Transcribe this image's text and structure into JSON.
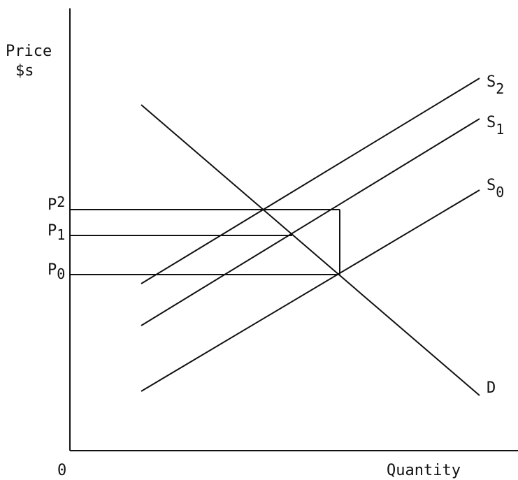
{
  "axes": {
    "y_label": "Price",
    "y_unit": "$s",
    "origin": "0",
    "x_label": "Quantity"
  },
  "curves": [
    {
      "name": "S",
      "sub": "2"
    },
    {
      "name": "S",
      "sub": "1"
    },
    {
      "name": "S",
      "sub": "0"
    },
    {
      "name": "D"
    }
  ],
  "prices": [
    {
      "name": "P",
      "sub": "2"
    },
    {
      "name": "P",
      "sub": "1"
    },
    {
      "name": "P",
      "sub": "0"
    }
  ]
}
